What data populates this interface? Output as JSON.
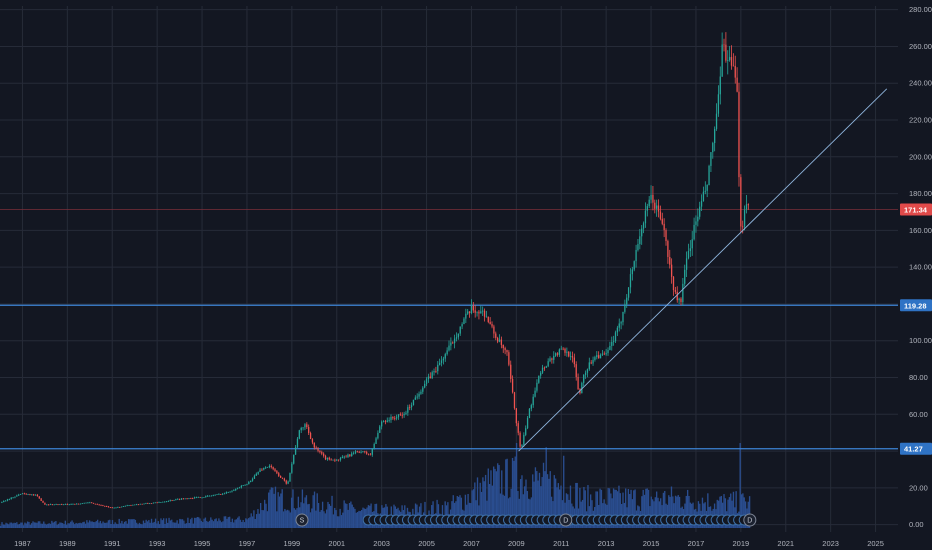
{
  "colors": {
    "background": "#131722",
    "grid": "#262b38",
    "up": "#26a69a",
    "down": "#ef5350",
    "volume": "#2a4d8f",
    "level": "#3d85d6",
    "trendline": "#8fb5dd",
    "price_tag": "#e04a4a",
    "level_tag": "#2f73c5"
  },
  "chart_data": {
    "type": "candlestick",
    "xlim": [
      1986.0,
      2026.0
    ],
    "ylim": [
      -4,
      282
    ],
    "grid": true,
    "price_axis": {
      "ticks": [
        0,
        20,
        40,
        60,
        80,
        100,
        120,
        140,
        160,
        180,
        200,
        220,
        240,
        260,
        280
      ],
      "labels": [
        "0.00",
        "20.00",
        "40.00",
        "60.00",
        "80.00",
        "100.00",
        "120.00",
        "140.00",
        "160.00",
        "180.00",
        "200.00",
        "220.00",
        "240.00",
        "260.00",
        "280.00"
      ]
    },
    "time_axis": {
      "ticks": [
        1987,
        1989,
        1991,
        1993,
        1995,
        1997,
        1999,
        2001,
        2003,
        2005,
        2007,
        2009,
        2011,
        2013,
        2015,
        2017,
        2019,
        2021,
        2023,
        2025
      ],
      "labels": [
        "1987",
        "1989",
        "1991",
        "1993",
        "1995",
        "1997",
        "1999",
        "2001",
        "2003",
        "2005",
        "2007",
        "2009",
        "2011",
        "2013",
        "2015",
        "2017",
        "2019",
        "2021",
        "2023",
        "2025"
      ]
    },
    "price_anchors": [
      [
        1986.0,
        12
      ],
      [
        1987.0,
        17
      ],
      [
        1987.6,
        16
      ],
      [
        1988.0,
        11
      ],
      [
        1989.0,
        11
      ],
      [
        1990.0,
        12
      ],
      [
        1991.0,
        9
      ],
      [
        1992.0,
        11
      ],
      [
        1993.0,
        12
      ],
      [
        1994.0,
        14
      ],
      [
        1995.0,
        15
      ],
      [
        1996.0,
        17
      ],
      [
        1997.0,
        22
      ],
      [
        1997.6,
        30
      ],
      [
        1998.0,
        32
      ],
      [
        1998.8,
        22
      ],
      [
        1999.3,
        50
      ],
      [
        1999.6,
        55
      ],
      [
        2000.0,
        42
      ],
      [
        2000.5,
        36
      ],
      [
        2001.0,
        35
      ],
      [
        2002.0,
        40
      ],
      [
        2002.5,
        38
      ],
      [
        2003.0,
        56
      ],
      [
        2004.0,
        60
      ],
      [
        2005.0,
        78
      ],
      [
        2005.5,
        86
      ],
      [
        2006.0,
        96
      ],
      [
        2006.7,
        112
      ],
      [
        2007.0,
        117
      ],
      [
        2007.6,
        115
      ],
      [
        2008.0,
        104
      ],
      [
        2008.6,
        92
      ],
      [
        2009.0,
        56
      ],
      [
        2009.2,
        40
      ],
      [
        2009.5,
        58
      ],
      [
        2010.0,
        82
      ],
      [
        2010.5,
        90
      ],
      [
        2011.0,
        95
      ],
      [
        2011.5,
        92
      ],
      [
        2011.8,
        70
      ],
      [
        2012.0,
        82
      ],
      [
        2012.5,
        92
      ],
      [
        2013.0,
        92
      ],
      [
        2013.6,
        108
      ],
      [
        2014.0,
        130
      ],
      [
        2014.5,
        158
      ],
      [
        2015.0,
        178
      ],
      [
        2015.5,
        165
      ],
      [
        2016.0,
        128
      ],
      [
        2016.3,
        120
      ],
      [
        2016.6,
        145
      ],
      [
        2017.0,
        165
      ],
      [
        2017.5,
        185
      ],
      [
        2018.0,
        230
      ],
      [
        2018.2,
        262
      ],
      [
        2018.5,
        250
      ],
      [
        2018.7,
        246
      ],
      [
        2018.85,
        230
      ],
      [
        2018.95,
        172
      ],
      [
        2019.05,
        157
      ],
      [
        2019.2,
        178
      ],
      [
        2019.4,
        171.34
      ]
    ],
    "volume_anchors": [
      [
        1986,
        0.05
      ],
      [
        1997,
        0.1
      ],
      [
        1998,
        0.35
      ],
      [
        2000,
        0.3
      ],
      [
        2002,
        0.2
      ],
      [
        2004,
        0.2
      ],
      [
        2006,
        0.25
      ],
      [
        2008,
        0.55
      ],
      [
        2009,
        0.6
      ],
      [
        2010,
        0.55
      ],
      [
        2011,
        0.5
      ],
      [
        2012,
        0.35
      ],
      [
        2014,
        0.35
      ],
      [
        2016,
        0.35
      ],
      [
        2018,
        0.3
      ],
      [
        2019.4,
        0.3
      ]
    ],
    "volume_spikes": [
      [
        2009.0,
        1.0
      ],
      [
        2010.3,
        0.95
      ],
      [
        2011.1,
        0.85
      ],
      [
        2018.95,
        1.0
      ]
    ],
    "horizontal_levels": [
      {
        "value": 119.28,
        "label": "119.28"
      },
      {
        "value": 41.27,
        "label": "41.27"
      }
    ],
    "last_price": {
      "value": 171.34,
      "label": "171.34"
    },
    "trendline": {
      "from": [
        2009.1,
        40
      ],
      "to": [
        2025.5,
        237
      ]
    },
    "event_markers": [
      {
        "x": 1999.45,
        "label": "S"
      },
      {
        "x": 2011.2,
        "label": "D"
      },
      {
        "x": 2019.4,
        "label": "D"
      }
    ],
    "dividend_marker_span": [
      2002.4,
      2019.3
    ]
  }
}
